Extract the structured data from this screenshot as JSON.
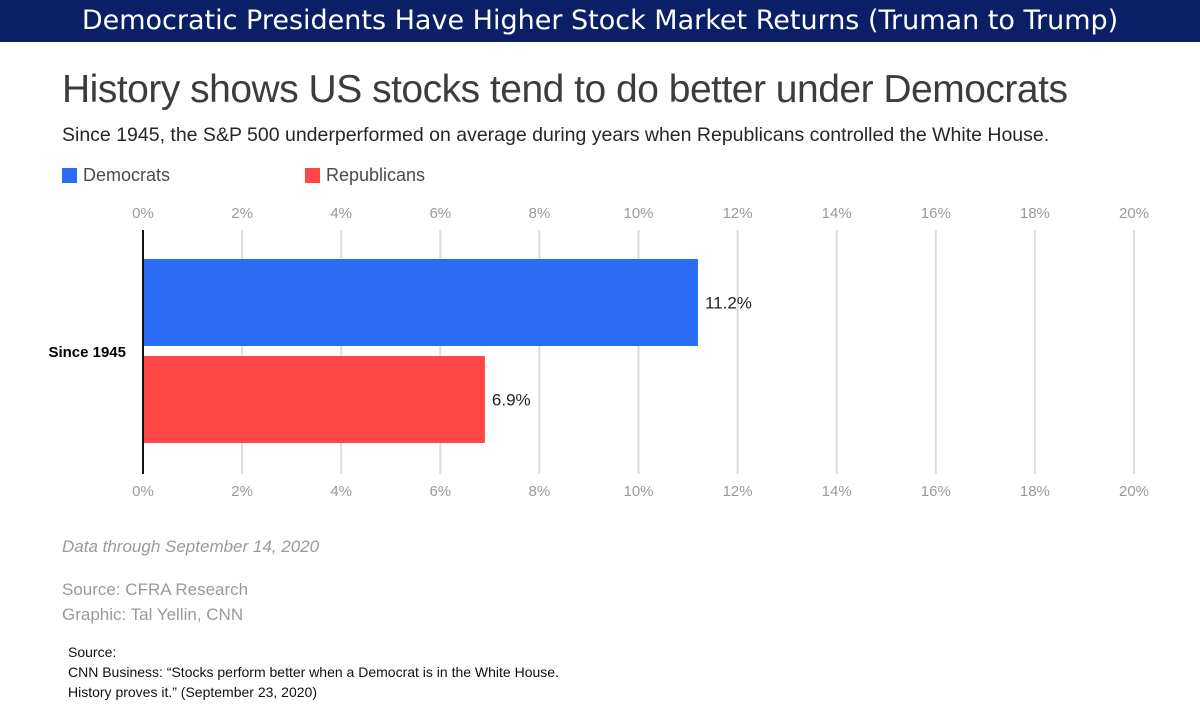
{
  "banner": {
    "title": "Democratic Presidents Have Higher Stock Market Returns (Truman to Trump)"
  },
  "chart_data": {
    "type": "bar",
    "orientation": "horizontal",
    "title": "History shows US stocks tend to do better under Democrats",
    "subtitle": "Since 1945, the S&P 500 underperformed on average during years when Republicans controlled the White House.",
    "categories": [
      "Since 1945"
    ],
    "series": [
      {
        "name": "Democrats",
        "values": [
          11.2
        ],
        "labels": [
          "11.2%"
        ],
        "color": "#2a6df4"
      },
      {
        "name": "Republicans",
        "values": [
          6.9
        ],
        "labels": [
          "6.9%"
        ],
        "color": "#ff4747"
      }
    ],
    "xlim": [
      0,
      20
    ],
    "xticks": [
      "0%",
      "2%",
      "4%",
      "6%",
      "8%",
      "10%",
      "12%",
      "14%",
      "16%",
      "18%",
      "20%"
    ],
    "grid": true,
    "legend": "top-left"
  },
  "notes": {
    "data_through": "Data through September 14, 2020",
    "source": "Source: CFRA Research",
    "graphic": "Graphic: Tal Yellin, CNN"
  },
  "footer": {
    "line1": "Source:",
    "line2": "CNN Business:  “Stocks perform better when a Democrat is in the White House.",
    "line3": "History proves it.” (September 23, 2020)"
  }
}
